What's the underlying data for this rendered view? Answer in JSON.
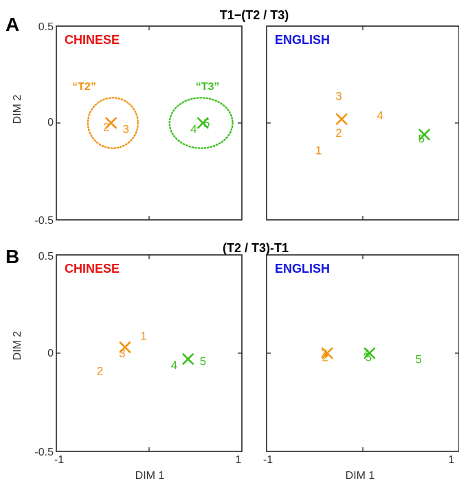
{
  "colors": {
    "tone2": "#f0910f",
    "tone3": "#3cc01e",
    "chinese": "#e81010",
    "english": "#1414e0"
  },
  "rows": [
    {
      "letter": "A",
      "title": "T1−(T2 / T3)"
    },
    {
      "letter": "B",
      "title": "(T2 / T3)-T1"
    }
  ],
  "axes": {
    "xlabel": "DIM 1",
    "ylabel": "DIM 2",
    "xticks": [
      "-1",
      "1"
    ],
    "yticks": [
      "0.5",
      "0",
      "-0.5"
    ]
  },
  "chart_data": [
    {
      "type": "scatter",
      "panel": "A-left",
      "language": "CHINESE",
      "xlim": [
        -1,
        1
      ],
      "ylim": [
        -0.5,
        0.5
      ],
      "centroids": [
        {
          "x": -0.41,
          "y": 0.0,
          "tone": "tone2"
        },
        {
          "x": 0.58,
          "y": 0.0,
          "tone": "tone3"
        }
      ],
      "points": [
        {
          "label": "2",
          "x": -0.46,
          "y": -0.02,
          "tone": "tone2"
        },
        {
          "label": "3",
          "x": -0.25,
          "y": -0.03,
          "tone": "tone2"
        },
        {
          "label": "4",
          "x": 0.48,
          "y": -0.03,
          "tone": "tone3"
        },
        {
          "label": "5",
          "x": 0.62,
          "y": 0.0,
          "tone": "tone3"
        }
      ],
      "ellipses": [
        {
          "cx": -0.39,
          "cy": 0.0,
          "rx": 0.27,
          "ry": 0.13,
          "tone": "tone2",
          "label": "“T2”",
          "lx": -0.7,
          "ly": 0.17
        },
        {
          "cx": 0.56,
          "cy": 0.0,
          "rx": 0.34,
          "ry": 0.13,
          "tone": "tone3",
          "label": "“T3”",
          "lx": 0.63,
          "ly": 0.17
        }
      ]
    },
    {
      "type": "scatter",
      "panel": "A-right",
      "language": "ENGLISH",
      "xlim": [
        -1,
        1
      ],
      "ylim": [
        -0.5,
        0.5
      ],
      "centroids": [
        {
          "x": -0.22,
          "y": 0.02,
          "tone": "tone2"
        },
        {
          "x": 0.64,
          "y": -0.06,
          "tone": "tone3"
        }
      ],
      "points": [
        {
          "label": "1",
          "x": -0.46,
          "y": -0.14,
          "tone": "tone2"
        },
        {
          "label": "2",
          "x": -0.25,
          "y": -0.05,
          "tone": "tone2"
        },
        {
          "label": "3",
          "x": -0.25,
          "y": 0.14,
          "tone": "tone2"
        },
        {
          "label": "4",
          "x": 0.18,
          "y": 0.04,
          "tone": "tone2"
        },
        {
          "label": "5",
          "x": 0.61,
          "y": -0.08,
          "tone": "tone3"
        }
      ],
      "ellipses": []
    },
    {
      "type": "scatter",
      "panel": "B-left",
      "language": "CHINESE",
      "xlim": [
        -1,
        1
      ],
      "ylim": [
        -0.5,
        0.5
      ],
      "centroids": [
        {
          "x": -0.26,
          "y": 0.03,
          "tone": "tone2"
        },
        {
          "x": 0.42,
          "y": -0.03,
          "tone": "tone3"
        }
      ],
      "points": [
        {
          "label": "1",
          "x": -0.06,
          "y": 0.09,
          "tone": "tone2"
        },
        {
          "label": "2",
          "x": -0.53,
          "y": -0.09,
          "tone": "tone2"
        },
        {
          "label": "3",
          "x": -0.29,
          "y": 0.0,
          "tone": "tone2"
        },
        {
          "label": "4",
          "x": 0.27,
          "y": -0.06,
          "tone": "tone3"
        },
        {
          "label": "5",
          "x": 0.58,
          "y": -0.04,
          "tone": "tone3"
        }
      ],
      "ellipses": []
    },
    {
      "type": "scatter",
      "panel": "B-right",
      "language": "ENGLISH",
      "xlim": [
        -1,
        1
      ],
      "ylim": [
        -0.5,
        0.5
      ],
      "centroids": [
        {
          "x": -0.37,
          "y": 0.0,
          "tone": "tone2"
        },
        {
          "x": 0.07,
          "y": 0.0,
          "tone": "tone3"
        }
      ],
      "points": [
        {
          "label": "2",
          "x": -0.39,
          "y": -0.02,
          "tone": "tone2"
        },
        {
          "label": "3",
          "x": -0.4,
          "y": 0.0,
          "tone": "tone2"
        },
        {
          "label": "4",
          "x": 0.04,
          "y": 0.0,
          "tone": "tone3"
        },
        {
          "label": "5",
          "x": 0.06,
          "y": -0.02,
          "tone": "tone3"
        },
        {
          "label": "5",
          "x": 0.58,
          "y": -0.03,
          "tone": "tone3"
        }
      ],
      "ellipses": []
    }
  ]
}
